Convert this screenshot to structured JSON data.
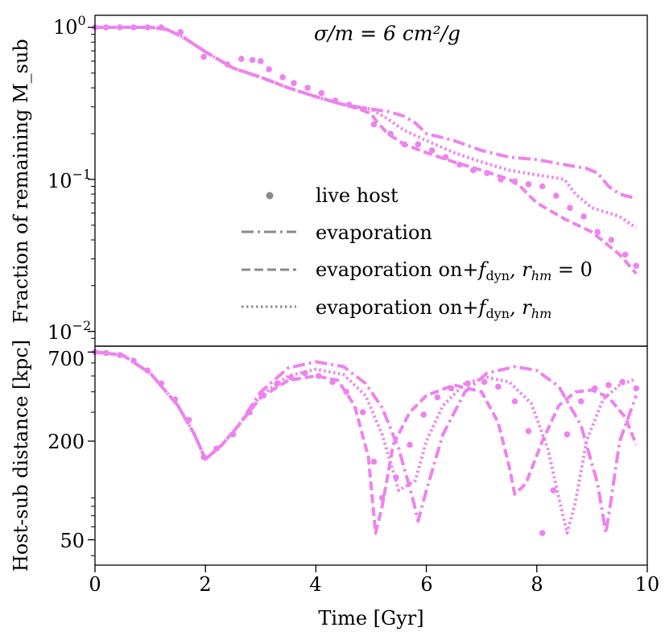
{
  "chart_data": [
    {
      "type": "line",
      "yscale": "log",
      "title": "",
      "annotation": "σ/m = 6 cm²/g",
      "xlabel": "",
      "ylabel": "Fraction of remaining M_sub",
      "xlim": [
        0,
        10
      ],
      "ylim": [
        0.008,
        1.2
      ],
      "yticks": [
        {
          "value": 1,
          "label": "10^0",
          "base": "10",
          "exp": "0"
        },
        {
          "value": 0.1,
          "label": "10^-1",
          "base": "10",
          "exp": "−1"
        },
        {
          "value": 0.01,
          "label": "10^-2",
          "base": "10",
          "exp": "−2"
        }
      ],
      "color": "#EE82EE",
      "series": [
        {
          "name": "live host",
          "style": "markers",
          "x": [
            0,
            0.2,
            0.45,
            0.7,
            0.95,
            1.2,
            1.55,
            1.97,
            2.4,
            2.65,
            2.85,
            3.0,
            3.15,
            3.4,
            3.6,
            3.85,
            4.1,
            4.35,
            4.6,
            4.85,
            5.05,
            5.35,
            5.6,
            5.85,
            6.1,
            6.35,
            6.6,
            6.85,
            7.1,
            7.35,
            7.6,
            7.85,
            8.1,
            8.35,
            8.6,
            8.85,
            9.1,
            9.35,
            9.6,
            9.8
          ],
          "y": [
            1.0,
            1.0,
            1.0,
            1.0,
            1.0,
            1.0,
            0.93,
            0.64,
            0.57,
            0.62,
            0.61,
            0.6,
            0.53,
            0.47,
            0.43,
            0.4,
            0.37,
            0.33,
            0.31,
            0.29,
            0.23,
            0.2,
            0.17,
            0.17,
            0.155,
            0.14,
            0.125,
            0.115,
            0.11,
            0.1,
            0.097,
            0.093,
            0.09,
            0.078,
            0.065,
            0.057,
            0.045,
            0.04,
            0.032,
            0.027
          ]
        },
        {
          "name": "evaporation",
          "style": "dashdot",
          "x": [
            0,
            0.5,
            1.0,
            1.3,
            1.6,
            2.0,
            2.5,
            3.0,
            3.5,
            4.0,
            4.5,
            5.0,
            5.3,
            5.6,
            5.8,
            6.0,
            6.5,
            7.0,
            7.5,
            8.0,
            8.5,
            8.9,
            9.1,
            9.3,
            9.5,
            9.8
          ],
          "y": [
            1.0,
            1.0,
            1.0,
            0.97,
            0.86,
            0.69,
            0.54,
            0.47,
            0.4,
            0.35,
            0.31,
            0.29,
            0.28,
            0.26,
            0.235,
            0.2,
            0.18,
            0.155,
            0.14,
            0.135,
            0.125,
            0.118,
            0.11,
            0.09,
            0.08,
            0.075
          ]
        },
        {
          "name": "evaporation on+f_dyn, r_hm = 0",
          "style": "dashed",
          "x": [
            0,
            0.5,
            1.0,
            1.3,
            1.6,
            2.0,
            2.5,
            3.0,
            3.5,
            4.0,
            4.5,
            4.8,
            5.0,
            5.1,
            5.3,
            5.6,
            6.0,
            6.5,
            7.0,
            7.5,
            7.7,
            8.0,
            8.5,
            9.0,
            9.5,
            9.8
          ],
          "y": [
            1.0,
            1.0,
            1.0,
            0.97,
            0.86,
            0.69,
            0.54,
            0.47,
            0.4,
            0.35,
            0.31,
            0.29,
            0.27,
            0.24,
            0.2,
            0.17,
            0.15,
            0.13,
            0.115,
            0.1,
            0.09,
            0.07,
            0.055,
            0.045,
            0.032,
            0.024
          ]
        },
        {
          "name": "evaporation on+f_dyn, r_hm",
          "style": "dotted",
          "x": [
            0,
            0.5,
            1.0,
            1.3,
            1.6,
            2.0,
            2.5,
            3.0,
            3.5,
            4.0,
            4.5,
            5.0,
            5.3,
            5.6,
            6.0,
            6.5,
            7.0,
            7.5,
            8.0,
            8.5,
            8.7,
            9.0,
            9.5,
            9.8
          ],
          "y": [
            1.0,
            1.0,
            1.0,
            0.97,
            0.86,
            0.69,
            0.54,
            0.47,
            0.4,
            0.35,
            0.31,
            0.29,
            0.25,
            0.21,
            0.18,
            0.15,
            0.13,
            0.115,
            0.107,
            0.1,
            0.08,
            0.065,
            0.057,
            0.048
          ]
        }
      ],
      "legend": {
        "placement": "center-right",
        "entries": [
          "live host",
          "evaporation",
          "evaporation on+",
          "evaporation on+"
        ],
        "math_tail_1": "f",
        "math_sub_1": "dyn",
        "math_sep_1": ", r",
        "math_sub_2": "hm",
        "math_eq_1": " = 0"
      }
    },
    {
      "type": "line",
      "yscale": "log",
      "xlabel": "Time [Gyr]",
      "ylabel": "Host-sub distance [kpc]",
      "xlim": [
        0,
        10
      ],
      "ylim": [
        35,
        760
      ],
      "yticks": [
        {
          "value": 700,
          "label": "700"
        },
        {
          "value": 200,
          "label": "200"
        },
        {
          "value": 50,
          "label": "50"
        }
      ],
      "xticks": [
        {
          "value": 0,
          "label": "0"
        },
        {
          "value": 2,
          "label": "2"
        },
        {
          "value": 4,
          "label": "4"
        },
        {
          "value": 6,
          "label": "6"
        },
        {
          "value": 8,
          "label": "8"
        },
        {
          "value": 10,
          "label": "10"
        }
      ],
      "color": "#EE82EE",
      "series": [
        {
          "name": "live host",
          "style": "markers",
          "x": [
            0,
            0.2,
            0.45,
            0.7,
            0.95,
            1.2,
            1.45,
            1.7,
            1.97,
            2.2,
            2.5,
            2.8,
            3.05,
            3.3,
            3.55,
            3.8,
            4.05,
            4.3,
            4.55,
            4.85,
            5.05,
            5.2,
            5.45,
            5.7,
            5.95,
            6.2,
            6.45,
            6.75,
            7.05,
            7.3,
            7.6,
            7.85,
            8.1,
            8.3,
            8.55,
            8.8,
            9.05,
            9.3,
            9.55,
            9.8
          ],
          "y": [
            700,
            690,
            670,
            620,
            540,
            450,
            360,
            270,
            160,
            180,
            220,
            300,
            380,
            450,
            490,
            520,
            500,
            460,
            400,
            300,
            150,
            90,
            120,
            190,
            290,
            370,
            420,
            450,
            460,
            430,
            350,
            230,
            55,
            100,
            220,
            350,
            420,
            440,
            460,
            420
          ]
        },
        {
          "name": "evaporation",
          "style": "dashdot",
          "x": [
            0,
            0.5,
            1.0,
            1.5,
            1.8,
            2.0,
            2.3,
            2.6,
            3.0,
            3.5,
            4.0,
            4.5,
            4.9,
            5.2,
            5.5,
            5.75,
            5.85,
            6.0,
            6.3,
            6.7,
            7.1,
            7.6,
            8.0,
            8.4,
            8.8,
            9.1,
            9.25,
            9.35,
            9.5,
            9.8
          ],
          "y": [
            700,
            670,
            520,
            330,
            220,
            155,
            190,
            250,
            400,
            560,
            610,
            570,
            450,
            320,
            180,
            90,
            65,
            100,
            220,
            400,
            520,
            570,
            540,
            430,
            250,
            110,
            55,
            90,
            200,
            380
          ]
        },
        {
          "name": "evaporation on+f_dyn, r_hm = 0",
          "style": "dashed",
          "x": [
            0,
            0.5,
            1.0,
            1.5,
            1.8,
            2.0,
            2.3,
            2.6,
            3.0,
            3.5,
            4.0,
            4.4,
            4.7,
            4.95,
            5.08,
            5.2,
            5.4,
            5.7,
            6.0,
            6.5,
            7.0,
            7.3,
            7.5,
            7.6,
            7.8,
            8.1,
            8.4,
            8.7,
            9.0,
            9.3,
            9.6,
            9.8
          ],
          "y": [
            700,
            670,
            520,
            330,
            220,
            155,
            190,
            250,
            370,
            470,
            500,
            470,
            330,
            160,
            55,
            80,
            190,
            300,
            380,
            440,
            400,
            260,
            140,
            95,
            110,
            200,
            330,
            400,
            410,
            370,
            280,
            190
          ]
        },
        {
          "name": "evaporation on+f_dyn, r_hm",
          "style": "dotted",
          "x": [
            0,
            0.5,
            1.0,
            1.5,
            1.8,
            2.0,
            2.3,
            2.6,
            3.0,
            3.5,
            4.0,
            4.5,
            4.9,
            5.2,
            5.5,
            5.8,
            6.0,
            6.3,
            6.7,
            7.1,
            7.5,
            7.9,
            8.2,
            8.4,
            8.55,
            8.7,
            8.9,
            9.2,
            9.5,
            9.8
          ],
          "y": [
            700,
            670,
            520,
            330,
            220,
            155,
            190,
            250,
            380,
            500,
            550,
            510,
            380,
            220,
            100,
            115,
            200,
            330,
            450,
            490,
            460,
            340,
            180,
            90,
            55,
            85,
            200,
            360,
            440,
            480
          ]
        }
      ]
    }
  ]
}
